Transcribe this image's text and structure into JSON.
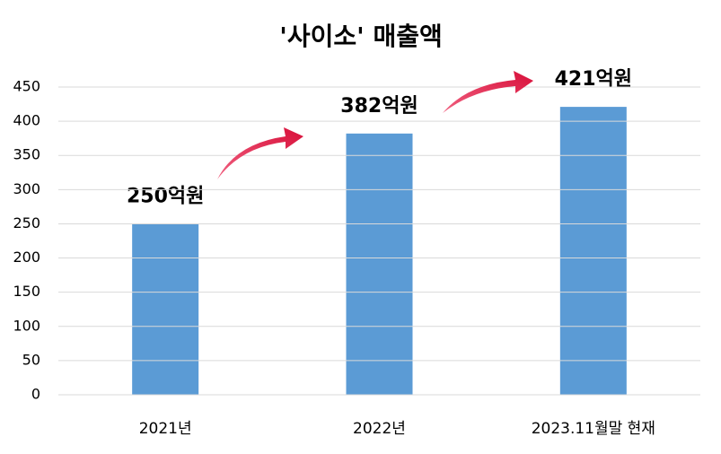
{
  "chart_data": {
    "type": "bar",
    "title": "'사이소' 매출액",
    "categories": [
      "2021년",
      "2022년",
      "2023.11월말 현재"
    ],
    "values": [
      250,
      382,
      421
    ],
    "value_labels": [
      "250억원",
      "382억원",
      "421억원"
    ],
    "color": "#5b9bd5",
    "ylim": [
      0,
      450
    ],
    "yticks": [
      0,
      50,
      100,
      150,
      200,
      250,
      300,
      350,
      400,
      450
    ],
    "grid": true
  }
}
